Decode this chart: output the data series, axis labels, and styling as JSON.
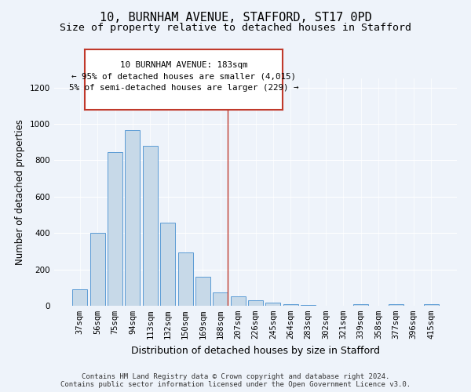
{
  "title1": "10, BURNHAM AVENUE, STAFFORD, ST17 0PD",
  "title2": "Size of property relative to detached houses in Stafford",
  "xlabel": "Distribution of detached houses by size in Stafford",
  "ylabel": "Number of detached properties",
  "categories": [
    "37sqm",
    "56sqm",
    "75sqm",
    "94sqm",
    "113sqm",
    "132sqm",
    "150sqm",
    "169sqm",
    "188sqm",
    "207sqm",
    "226sqm",
    "245sqm",
    "264sqm",
    "283sqm",
    "302sqm",
    "321sqm",
    "339sqm",
    "358sqm",
    "377sqm",
    "396sqm",
    "415sqm"
  ],
  "values": [
    90,
    400,
    845,
    965,
    880,
    455,
    295,
    160,
    75,
    52,
    30,
    18,
    10,
    5,
    2,
    0,
    8,
    0,
    10,
    0,
    10
  ],
  "bar_color": "#c7d9e8",
  "bar_edge_color": "#5b9bd5",
  "vline_color": "#c0392b",
  "annotation_text": "10 BURNHAM AVENUE: 183sqm\n← 95% of detached houses are smaller (4,015)\n5% of semi-detached houses are larger (229) →",
  "annotation_box_color": "white",
  "annotation_box_edge": "#c0392b",
  "ylim": [
    0,
    1250
  ],
  "yticks": [
    0,
    200,
    400,
    600,
    800,
    1000,
    1200
  ],
  "bg_color": "#eef3fa",
  "plot_bg_color": "#eef3fa",
  "footer": "Contains HM Land Registry data © Crown copyright and database right 2024.\nContains public sector information licensed under the Open Government Licence v3.0.",
  "title1_fontsize": 11,
  "title2_fontsize": 9.5,
  "xlabel_fontsize": 9,
  "ylabel_fontsize": 8.5,
  "tick_fontsize": 7.5,
  "footer_fontsize": 6.5
}
